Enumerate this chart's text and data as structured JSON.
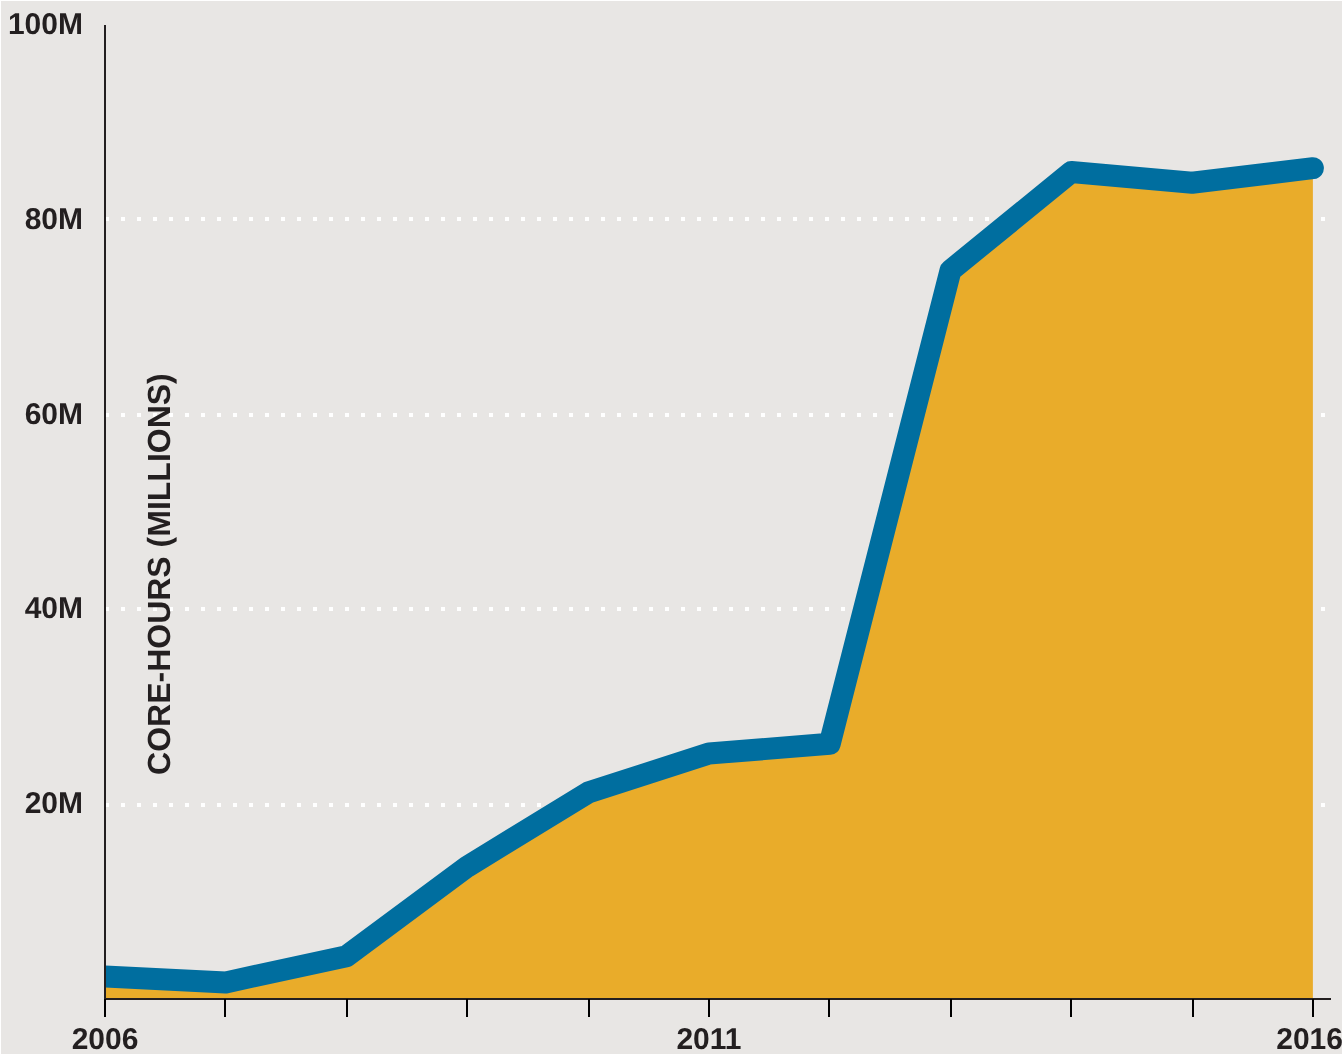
{
  "chart_data": {
    "type": "area",
    "ylabel": "CORE-HOURS (MILLIONS)",
    "x": [
      2006,
      2007,
      2008,
      2009,
      2010,
      2011,
      2012,
      2013,
      2014,
      2015,
      2016
    ],
    "series": [
      {
        "color": "#e9ac2a",
        "values": [
          2.3,
          1.7,
          4.4,
          13.6,
          21.2,
          25.2,
          26.2,
          74.8,
          84.9,
          83.8,
          85.3
        ]
      },
      {
        "type": "line",
        "color": "#006e9f",
        "values": [
          2.3,
          1.7,
          4.4,
          13.6,
          21.2,
          25.2,
          26.2,
          74.8,
          84.9,
          83.8,
          85.3
        ]
      }
    ],
    "xlim": [
      2006,
      2016.15
    ],
    "ylim": [
      0,
      100
    ],
    "xticks": [
      2006,
      {
        "value": 2007,
        "label": null
      },
      {
        "value": 2008,
        "label": null
      },
      {
        "value": 2009,
        "label": null
      },
      {
        "value": 2010,
        "label": null
      },
      2011,
      {
        "value": 2012,
        "label": null
      },
      {
        "value": 2013,
        "label": null
      },
      {
        "value": 2014,
        "label": null
      },
      {
        "value": 2015,
        "label": null
      },
      2016
    ],
    "yticks": [
      {
        "value": 0,
        "label": null
      },
      {
        "value": 20,
        "label": "20M"
      },
      {
        "value": 40,
        "label": "40M"
      },
      {
        "value": 60,
        "label": "60M"
      },
      {
        "value": 80,
        "label": "80M"
      },
      {
        "value": 100,
        "label": "100M"
      }
    ],
    "grid": "y"
  }
}
